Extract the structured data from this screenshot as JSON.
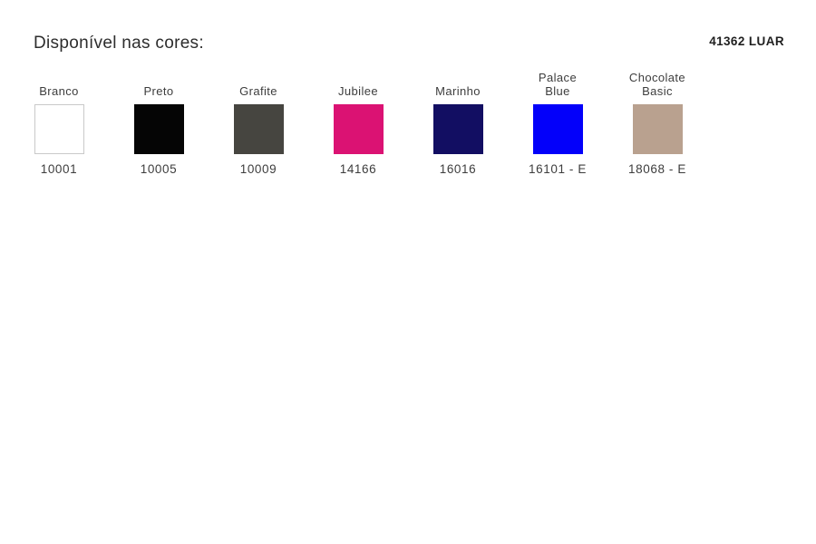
{
  "header": {
    "title": "Disponível nas cores:",
    "product_code": "41362 LUAR"
  },
  "palette": {
    "swatch_border_color": "#c9c9c9",
    "colors": [
      {
        "name": "Branco",
        "code": "10001",
        "hex": "#ffffff",
        "bordered": true
      },
      {
        "name": "Preto",
        "code": "10005",
        "hex": "#050505",
        "bordered": false
      },
      {
        "name": "Grafite",
        "code": "10009",
        "hex": "#464540",
        "bordered": false
      },
      {
        "name": "Jubilee",
        "code": "14166",
        "hex": "#db1273",
        "bordered": false
      },
      {
        "name": "Marinho",
        "code": "16016",
        "hex": "#120e62",
        "bordered": false
      },
      {
        "name": "Palace\nBlue",
        "code": "16101 - E",
        "hex": "#0300fa",
        "bordered": false
      },
      {
        "name": "Chocolate\nBasic",
        "code": "18068 - E",
        "hex": "#b9a18f",
        "bordered": false
      }
    ]
  }
}
